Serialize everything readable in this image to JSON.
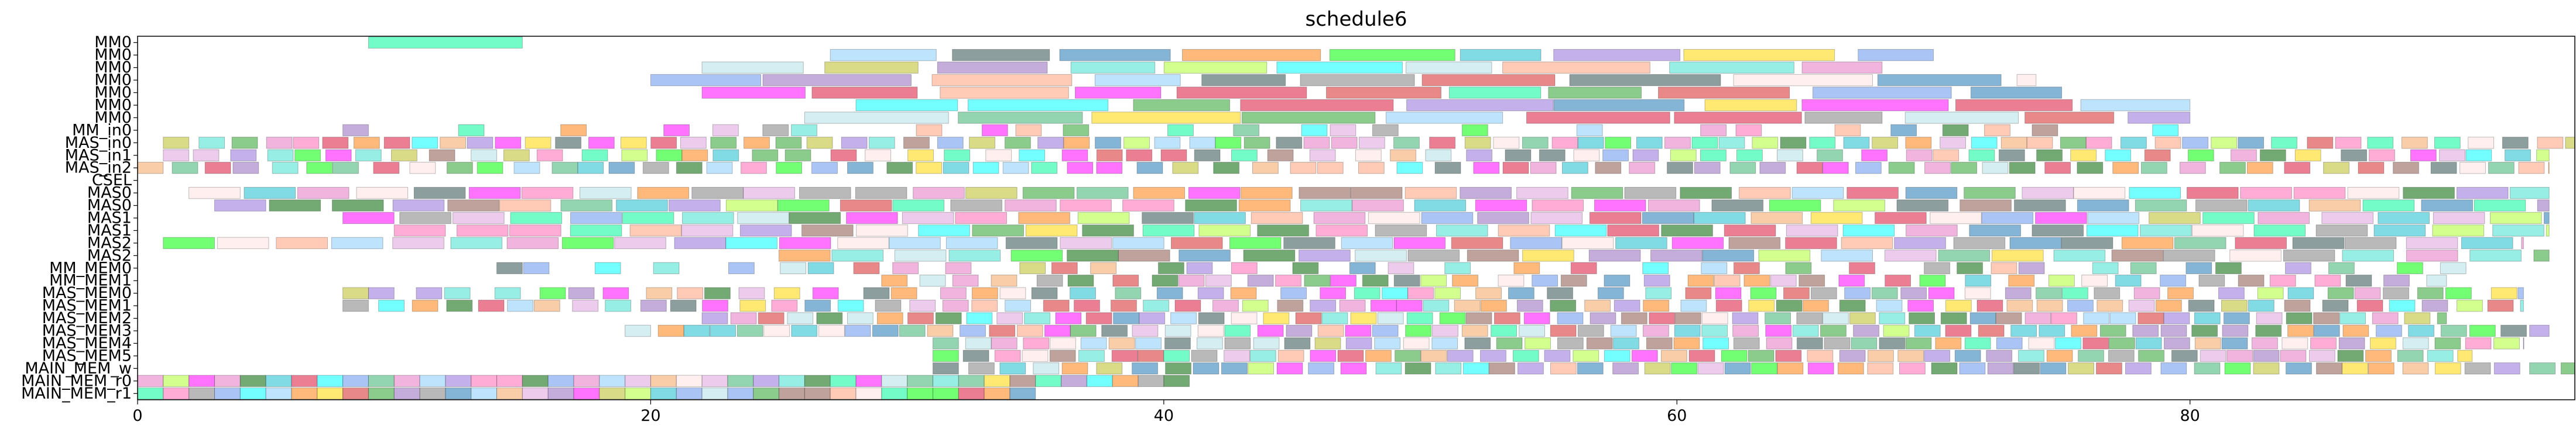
{
  "chart_data": {
    "type": "gantt",
    "title": "schedule6",
    "xlim": [
      0,
      95
    ],
    "x_ticks": [
      0,
      20,
      40,
      60,
      80
    ],
    "x_tick_labels": [
      "0",
      "20",
      "40",
      "60",
      "80"
    ],
    "rows": [
      "MM0",
      "MM0",
      "MM0",
      "MM0",
      "MM0",
      "MM0",
      "MM0",
      "MM_in0",
      "MAS_in0",
      "MAS_in1",
      "MAS_in2",
      "CSEL",
      "MAS0",
      "MAS0",
      "MAS1",
      "MAS1",
      "MAS2",
      "MAS2",
      "MM_MEM0",
      "MM_MEM1",
      "MAS_MEM0",
      "MAS_MEM1",
      "MAS_MEM2",
      "MAS_MEM3",
      "MAS_MEM4",
      "MAS_MEM5",
      "MAIN_MEM_w",
      "MAIN_MEM_r0",
      "MAIN_MEM_r1"
    ],
    "grid": false,
    "legend": "none"
  },
  "colors": {
    "palette": [
      "#e377c2",
      "#7f7f7f",
      "#bcbd22",
      "#17becf",
      "#ff7f0e",
      "#2ca02c",
      "#d62728",
      "#9467bd",
      "#8c564b",
      "#1f77b4",
      "#ff00ff",
      "#00ffff",
      "#00ff00",
      "#ff69b4",
      "#ffd700",
      "#00fa9a",
      "#adff2f",
      "#87cefa",
      "#ffa07a",
      "#9370db",
      "#3cb371",
      "#dda0dd",
      "#40e0d0",
      "#b0e0e6",
      "#f4a460",
      "#6495ed",
      "#dc143c",
      "#006400",
      "#ffe4e1",
      "#2f4f4f"
    ],
    "axis": "#000000"
  }
}
